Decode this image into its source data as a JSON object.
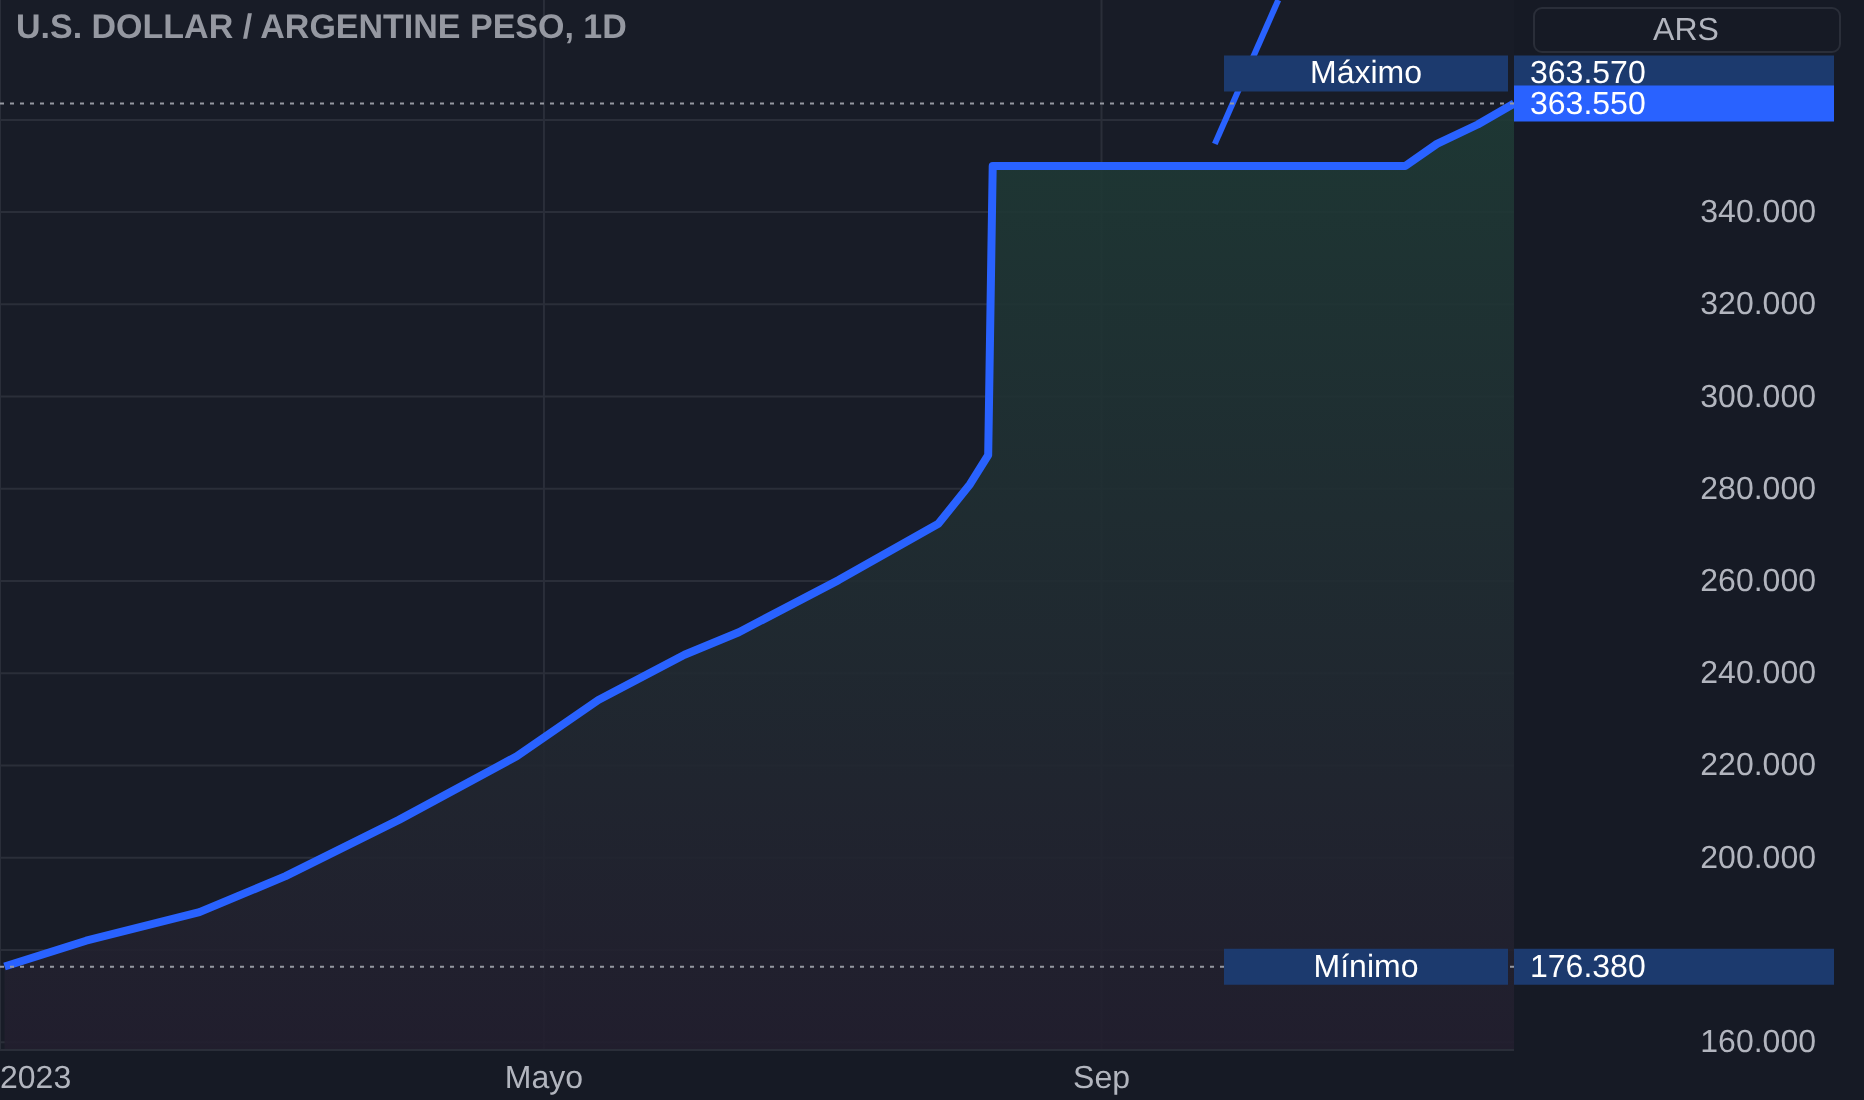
{
  "chart_data": {
    "type": "area",
    "title": "U.S. DOLLAR / ARGENTINE PESO, 1D",
    "x": [
      "2023-01-02",
      "2023-01-20",
      "2023-02-14",
      "2023-03-05",
      "2023-03-30",
      "2023-04-25",
      "2023-05-13",
      "2023-06-01",
      "2023-06-13",
      "2023-07-05",
      "2023-07-27",
      "2023-08-03",
      "2023-08-07",
      "2023-08-08",
      "2023-09-15",
      "2023-10-20",
      "2023-11-07",
      "2023-11-14",
      "2023-11-23",
      "2023-12-01"
    ],
    "series": [
      {
        "color": "#2962ff",
        "values": [
          176.4,
          182,
          188.2,
          196,
          208.2,
          222,
          234.2,
          244,
          248.9,
          260.2,
          272.4,
          281,
          287.3,
          350,
          350,
          350,
          350,
          354.8,
          359,
          363.55
        ]
      },
      {
        "type": "line",
        "color": "#2962ff",
        "x": [
          "2023-09-26",
          "2023-10-10"
        ],
        "values": [
          354.8,
          386
        ]
      }
    ],
    "xlim": [
      "2023-01-01",
      "2023-12-01"
    ],
    "xticks": [
      {
        "value": "2023-01-01",
        "label": "2023"
      },
      {
        "value": "2023-05-01",
        "label": "Mayo"
      },
      {
        "value": "2023-09-01",
        "label": "Sep"
      }
    ],
    "ylim": [
      158.3,
      386
    ],
    "yticks": [
      {
        "value": 160,
        "label": "160.000"
      },
      {
        "value": 180,
        "label": null
      },
      {
        "value": 200,
        "label": "200.000"
      },
      {
        "value": 220,
        "label": "220.000"
      },
      {
        "value": 240,
        "label": "240.000"
      },
      {
        "value": 260,
        "label": "260.000"
      },
      {
        "value": 280,
        "label": "280.000"
      },
      {
        "value": 300,
        "label": "300.000"
      },
      {
        "value": 320,
        "label": "320.000"
      },
      {
        "value": 340,
        "label": "340.000"
      },
      {
        "value": 360,
        "label": null
      }
    ],
    "grid": true,
    "ref_lines": [
      {
        "axis": "y",
        "value": 363.57,
        "label": "Máximo",
        "color": "#9598a1",
        "line_style": "dotted"
      },
      {
        "axis": "y",
        "value": 176.38,
        "label": "Mínimo",
        "color": "#9598a1",
        "line_style": "dotted"
      }
    ],
    "annotations": [
      "ARS",
      "363.570",
      "176.380",
      {
        "text": "363.550",
        "x": "2023-12-01",
        "y": 363.55
      }
    ]
  }
}
